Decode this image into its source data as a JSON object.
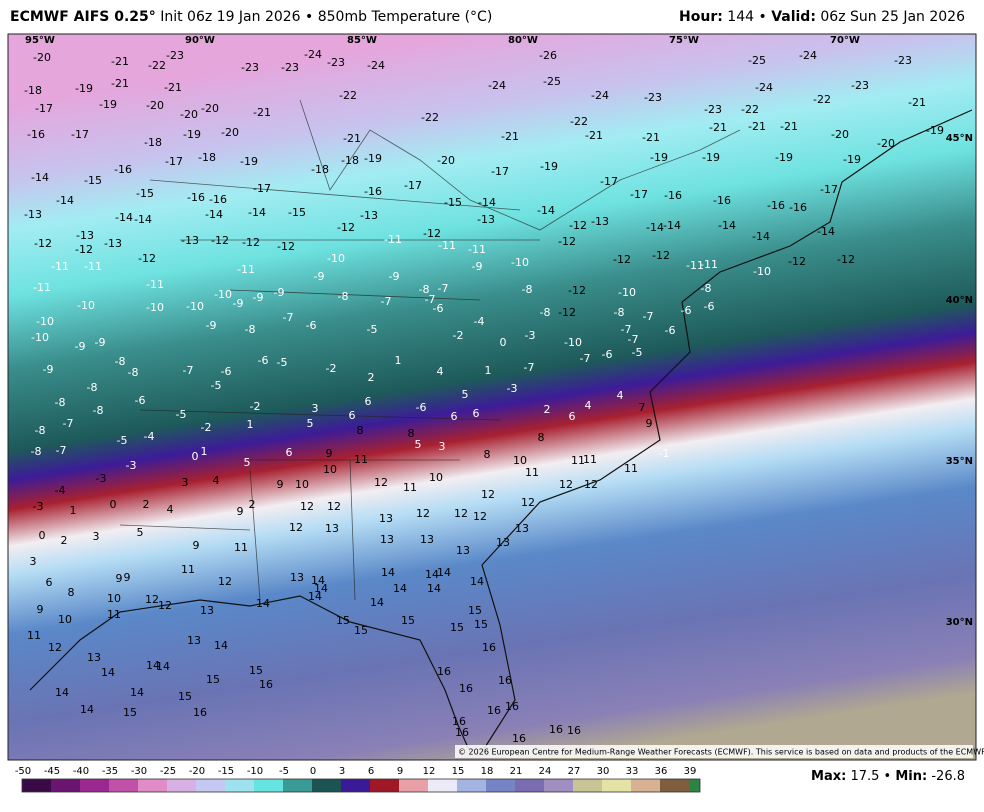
{
  "header": {
    "model": "ECMWF AIFS 0.25°",
    "run": "Init 06z 19 Jan 2026 • 850mb Temperature (°C)",
    "hour_label": "Hour:",
    "hour": "144",
    "valid_label": "Valid:",
    "valid": "06z Sun 25 Jan 2026"
  },
  "map": {
    "lon_labels": [
      "95°W",
      "90°W",
      "85°W",
      "80°W",
      "75°W",
      "70°W"
    ],
    "lat_labels": [
      "45°N",
      "40°N",
      "35°N",
      "30°N"
    ],
    "copyright": "© 2026 European Centre for Medium-Range Weather Forecasts (ECMWF). This service is based on data and products of the ECMWF.",
    "values": [
      -20,
      -21,
      -22,
      -23,
      -23,
      -23,
      -24,
      -23,
      -24,
      -26,
      -25,
      -24,
      -23,
      -18,
      -19,
      -21,
      -21,
      -22,
      -24,
      -25,
      -24,
      -23,
      -24,
      -22,
      -23,
      -21,
      -17,
      -19,
      -20,
      -20,
      -20,
      -21,
      -22,
      -22,
      -23,
      -22,
      -16,
      -17,
      -18,
      -19,
      -20,
      -21,
      -21,
      -21,
      -21,
      -21,
      -21,
      -21,
      -20,
      -20,
      -19,
      -14,
      -15,
      -16,
      -17,
      -18,
      -19,
      -18,
      -18,
      -19,
      -20,
      -17,
      -19,
      -17,
      -19,
      -19,
      -19,
      -19,
      -14,
      -15,
      -16,
      -16,
      -17,
      -16,
      -17,
      -15,
      -14,
      -14,
      -17,
      -16,
      -16,
      -16,
      -17,
      -13,
      -14,
      -14,
      -14,
      -14,
      -15,
      -13,
      -13,
      -12,
      -13,
      -14,
      -14,
      -14,
      -14,
      -16,
      -14,
      -12,
      -13,
      -12,
      -13,
      -13,
      -12,
      -12,
      -12,
      -12,
      -11,
      -12,
      -11,
      -11,
      -12,
      -12,
      -12,
      -11,
      -10,
      -12,
      -12,
      -11,
      -11,
      -12,
      -11,
      -10,
      -9,
      -9,
      -9,
      -10,
      -11,
      -11,
      -11,
      -10,
      -10,
      -10,
      -10,
      -9,
      -9,
      -9,
      -8,
      -7,
      -8,
      -7,
      -7,
      -6,
      -8,
      -12,
      -10,
      -8,
      -10,
      -9,
      -9,
      -8,
      -7,
      -6,
      -5,
      -4,
      -3,
      -8,
      -12,
      -8,
      -7,
      -6,
      -6,
      -10,
      -9,
      -8,
      -8,
      -7,
      -6,
      -6,
      -5,
      -2,
      -2,
      0,
      -10,
      -7,
      -7,
      -6,
      -5,
      -6,
      -9,
      -8,
      -8,
      -8,
      -6,
      -5,
      -5,
      1,
      4,
      1,
      2,
      5,
      -7,
      -3,
      -7,
      -8,
      -7,
      -5,
      -4,
      -2,
      3,
      6,
      -6,
      6,
      6,
      6,
      2,
      6,
      4,
      4,
      7,
      9,
      -1,
      -8,
      -7,
      -3,
      -2,
      1,
      5,
      8,
      8,
      5,
      3,
      8,
      8,
      -3,
      -4,
      0,
      1,
      5,
      6,
      9,
      11,
      10,
      11,
      11,
      11,
      11,
      -3,
      1,
      0,
      2,
      4,
      3,
      4,
      9,
      10,
      10,
      12,
      11,
      10,
      12,
      12,
      12,
      0,
      2,
      3,
      5,
      9,
      2,
      12,
      12,
      12,
      13,
      13,
      12,
      12,
      12,
      12,
      13,
      3,
      6,
      8,
      9,
      9,
      9,
      11,
      13,
      13,
      13,
      13,
      9,
      10,
      10,
      12,
      12,
      11,
      12,
      13,
      14,
      14,
      14,
      14,
      14,
      14,
      14,
      14,
      14,
      11,
      12,
      11,
      13,
      14,
      14,
      15,
      15,
      15,
      15,
      15,
      15,
      16,
      13,
      14,
      14,
      14,
      13,
      14,
      15,
      15,
      16,
      16,
      16,
      16,
      14,
      14,
      14,
      15,
      15,
      16,
      16,
      16,
      16,
      16,
      16,
      16,
      16
    ]
  },
  "legend": {
    "ticks": [
      -50,
      -45,
      -40,
      -35,
      -30,
      -25,
      -20,
      -15,
      -10,
      -5,
      0,
      3,
      6,
      9,
      12,
      15,
      18,
      21,
      24,
      27,
      30,
      33,
      36,
      39
    ],
    "colors": [
      "#3a0a48",
      "#6a1570",
      "#9a2890",
      "#c150a8",
      "#e08cc8",
      "#d8b0e4",
      "#c4c8f2",
      "#9ee2f0",
      "#66e4e2",
      "#3a9a96",
      "#1c5454",
      "#3a1a96",
      "#a01828",
      "#e8a0a6",
      "#eceaf6",
      "#a4b4e2",
      "#7484c4",
      "#7a6cb0",
      "#a08ec2",
      "#c8c494",
      "#e4e2a4",
      "#d8b092",
      "#7e5e3e",
      "#2a8442"
    ],
    "max_label": "Max:",
    "max": "17.5",
    "min_label": "Min:",
    "min": "-26.8"
  }
}
